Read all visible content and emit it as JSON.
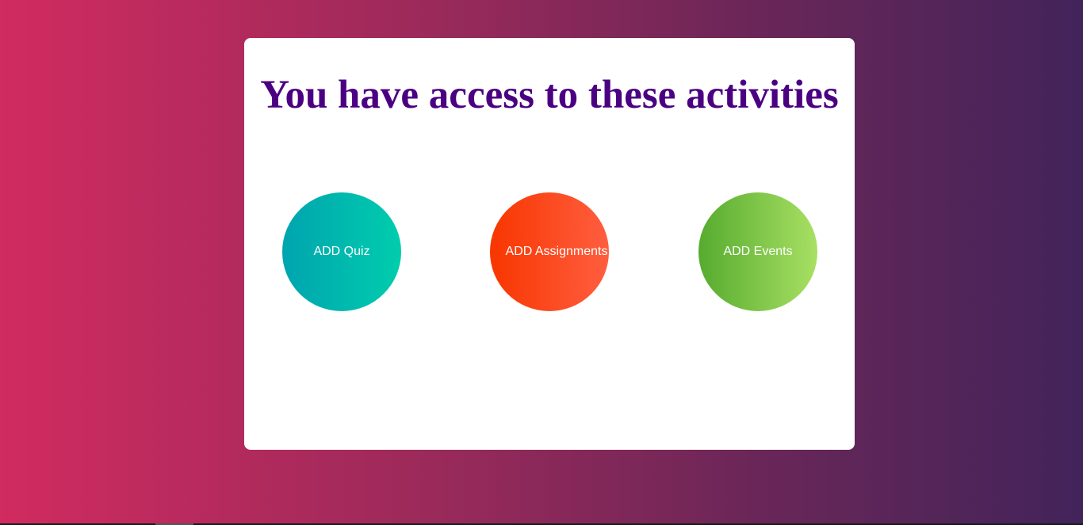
{
  "main": {
    "title": "You have access to these activities",
    "activities": [
      {
        "label": "ADD Quiz",
        "color_from": "#00a4af",
        "color_to": "#00cdad"
      },
      {
        "label": "ADD Assignments",
        "color_from": "#f83600",
        "color_to": "#ff5e40"
      },
      {
        "label": "ADD Events",
        "color_from": "#56ab2f",
        "color_to": "#a8e063"
      }
    ]
  },
  "colors": {
    "title": "#4b0082",
    "background_left": "#d12b60",
    "background_right": "#42245a",
    "card": "#ffffff"
  }
}
